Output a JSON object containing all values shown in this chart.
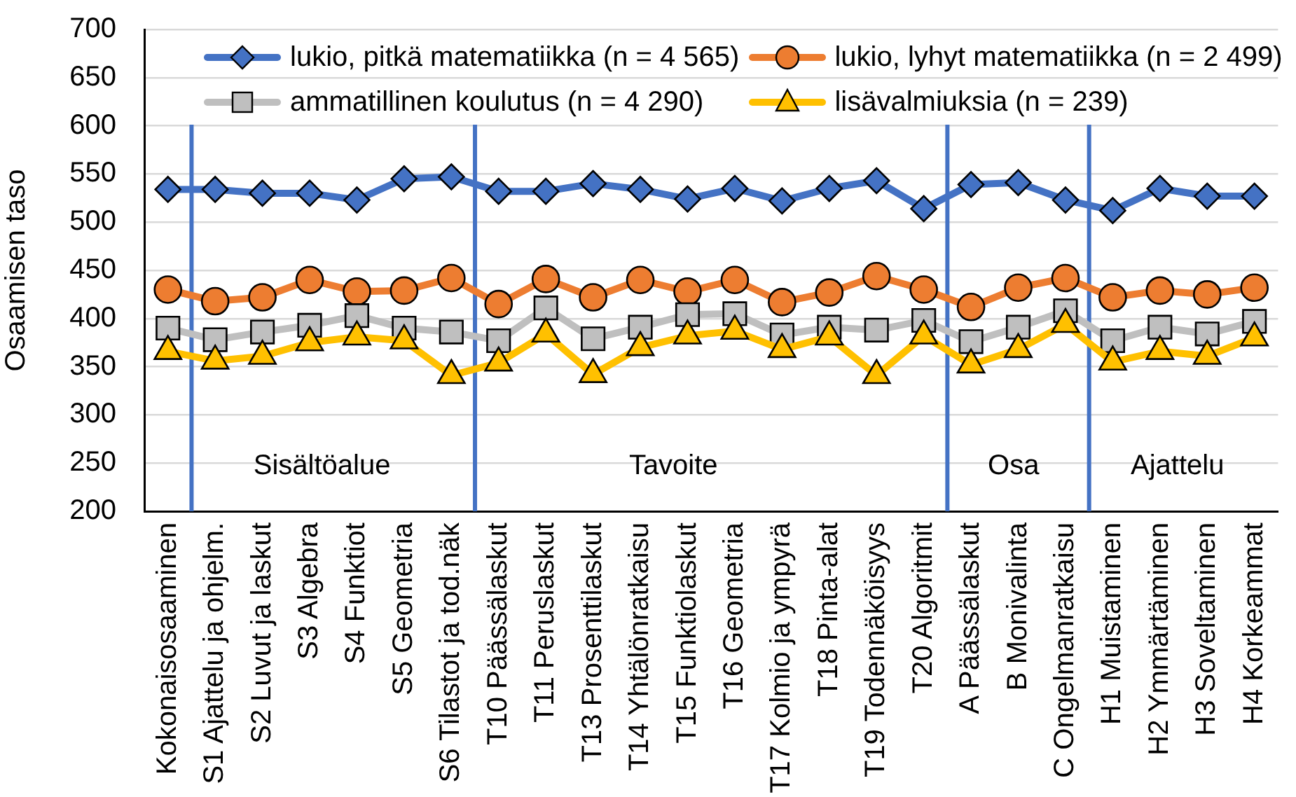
{
  "chart_data": {
    "type": "line",
    "ylabel": "Osaamisen taso",
    "categories": [
      "Kokonaisosaaminen",
      "S1 Ajattelu ja ohjelm.",
      "S2 Luvut ja laskut",
      "S3 Algebra",
      "S4 Funktiot",
      "S5 Geometria",
      "S6 Tilastot ja tod.näk",
      "T10 Päässälaskut",
      "T11 Peruslaskut",
      "T13 Prosenttilaskut",
      "T14 Yhtälönratkaisu",
      "T15 Funktiolaskut",
      "T16 Geometria",
      "T17 Kolmio ja ympyrä",
      "T18 Pinta-alat",
      "T19 Todennäköisyys",
      "T20 Algoritmit",
      "A Päässälaskut",
      "B Monivalinta",
      "C Ongelmanratkaisu",
      "H1 Muistaminen",
      "H2 Ymmärtäminen",
      "H3 Soveltaminen",
      "H4 Korkeammat"
    ],
    "series": [
      {
        "name": "lukio, pitkä matematiikka (n = 4 565)",
        "color": "#4472c4",
        "marker": "diamond",
        "values": [
          534,
          534,
          530,
          530,
          523,
          545,
          547,
          532,
          532,
          540,
          534,
          524,
          535,
          522,
          535,
          543,
          514,
          539,
          541,
          523,
          512,
          535,
          527,
          527
        ]
      },
      {
        "name": "lukio, lyhyt matematiikka (n = 2 499)",
        "color": "#ed7d31",
        "marker": "circle",
        "values": [
          430,
          418,
          422,
          440,
          428,
          429,
          442,
          415,
          441,
          422,
          440,
          428,
          440,
          417,
          427,
          444,
          430,
          412,
          432,
          442,
          422,
          429,
          425,
          432
        ]
      },
      {
        "name": "ammatillinen koulutus (n = 4 290)",
        "color": "#bfbfbf",
        "marker": "square",
        "values": [
          390,
          378,
          386,
          393,
          403,
          390,
          386,
          377,
          411,
          379,
          391,
          404,
          405,
          383,
          391,
          388,
          398,
          376,
          391,
          408,
          377,
          391,
          384,
          397
        ]
      },
      {
        "name": "lisävalmiuksia (n = 239)",
        "color": "#ffc000",
        "marker": "triangle",
        "values": [
          366,
          356,
          361,
          375,
          381,
          377,
          341,
          354,
          384,
          342,
          370,
          382,
          387,
          368,
          381,
          341,
          382,
          352,
          368,
          394,
          355,
          366,
          361,
          380
        ]
      }
    ],
    "ylim": [
      200,
      700
    ],
    "yticks": [
      200,
      250,
      300,
      350,
      400,
      450,
      500,
      550,
      600,
      650,
      700
    ],
    "grid": "y",
    "legend": "top",
    "line_style": "solid",
    "annotations": [
      "Sisältöalue",
      "Tavoite",
      "Osa",
      "Ajattelu"
    ]
  }
}
